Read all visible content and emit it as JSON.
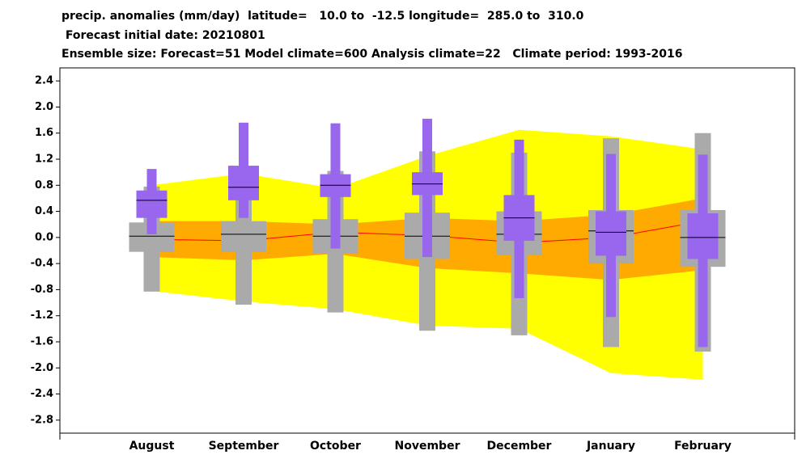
{
  "chart_data": {
    "type": "box",
    "title_lines": [
      "precip. anomalies (mm/day)  latitude=   10.0 to  -12.5 longitude=  285.0 to  310.0",
      " Forecast initial date: 20210801",
      "Ensemble size: Forecast=51 Model climate=600 Analysis climate=22   Climate period: 1993-2016"
    ],
    "categories": [
      "August",
      "September",
      "October",
      "November",
      "December",
      "January",
      "February"
    ],
    "ylim": [
      -3.0,
      2.6
    ],
    "yticks": [
      {
        "value": 2.4,
        "label": "2.4"
      },
      {
        "value": 2.0,
        "label": "2.0"
      },
      {
        "value": 1.6,
        "label": "1.6"
      },
      {
        "value": 1.2,
        "label": "1.2"
      },
      {
        "value": 0.8,
        "label": "0.8"
      },
      {
        "value": 0.4,
        "label": "0.4"
      },
      {
        "value": 0,
        "label": "0.0"
      },
      {
        "value": -0.4,
        "label": "-0.4"
      },
      {
        "value": -0.8,
        "label": "-0.8"
      },
      {
        "value": -1.2,
        "label": "-1.2"
      },
      {
        "value": -1.6,
        "label": "-1.6"
      },
      {
        "value": -2.0,
        "label": "-2.0"
      },
      {
        "value": -2.4,
        "label": "-2.4"
      },
      {
        "value": -2.8,
        "label": "-2.8"
      }
    ],
    "bands": [
      {
        "color": "#ffff00",
        "upper": [
          0.8,
          0.98,
          0.75,
          1.25,
          1.65,
          1.55,
          1.35
        ],
        "lower": [
          -0.82,
          -0.98,
          -1.1,
          -1.35,
          -1.4,
          -2.08,
          -2.18
        ]
      },
      {
        "color": "#ffaa00",
        "upper": [
          0.25,
          0.25,
          0.2,
          0.3,
          0.25,
          0.35,
          0.6
        ],
        "lower": [
          -0.3,
          -0.35,
          -0.25,
          -0.47,
          -0.55,
          -0.65,
          -0.5
        ]
      }
    ],
    "median_line": {
      "color": "#ff0000",
      "values": [
        -0.03,
        -0.05,
        0.08,
        0.03,
        -0.08,
        0.0,
        0.25
      ]
    },
    "box_series": [
      {
        "color": "#aaaaaa",
        "min": [
          -0.83,
          -1.03,
          -1.15,
          -1.43,
          -1.5,
          -1.68,
          -1.75
        ],
        "q1": [
          -0.22,
          -0.22,
          -0.25,
          -0.33,
          -0.27,
          -0.4,
          -0.45
        ],
        "median": [
          0.02,
          0.05,
          0.02,
          0.02,
          0.05,
          0.1,
          0.0
        ],
        "q3": [
          0.23,
          0.25,
          0.28,
          0.38,
          0.4,
          0.42,
          0.42
        ],
        "max": [
          0.78,
          0.95,
          1.02,
          1.32,
          1.3,
          1.52,
          1.6
        ]
      },
      {
        "color": "#9966ee",
        "min": [
          0.05,
          0.3,
          -0.17,
          -0.3,
          -0.93,
          -1.22,
          -1.68
        ],
        "q1": [
          0.3,
          0.57,
          0.62,
          0.65,
          -0.05,
          -0.28,
          -0.33
        ],
        "median": [
          0.57,
          0.77,
          0.8,
          0.82,
          0.3,
          0.08,
          0.0
        ],
        "q3": [
          0.72,
          1.1,
          0.97,
          1.0,
          0.65,
          0.4,
          0.37
        ],
        "max": [
          1.05,
          1.76,
          1.75,
          1.82,
          1.5,
          1.28,
          1.27
        ]
      }
    ]
  }
}
